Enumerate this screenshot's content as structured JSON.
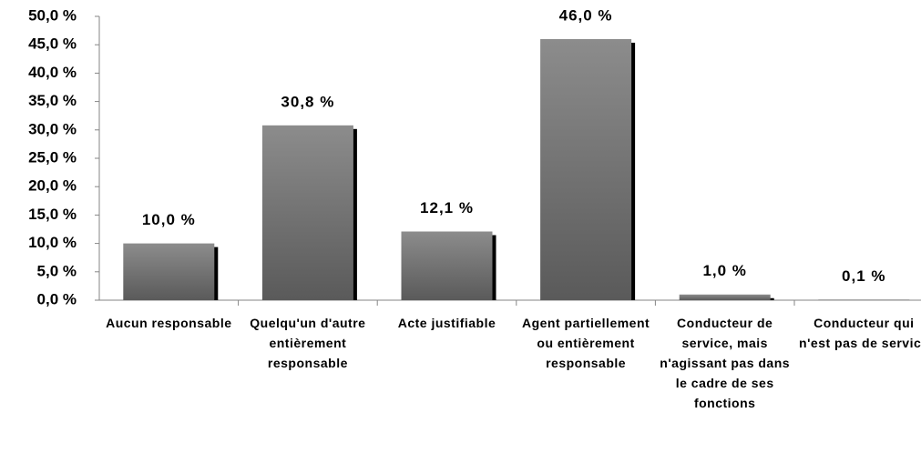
{
  "chart_data": {
    "type": "bar",
    "categories": [
      "Aucun responsable",
      "Quelqu'un d'autre entièrement responsable",
      "Acte justifiable",
      "Agent partiellement ou entièrement responsable",
      "Conducteur de service, mais n'agissant pas dans le cadre de ses fonctions",
      "Conducteur qui n'est pas de service"
    ],
    "values": [
      10.0,
      30.8,
      12.1,
      46.0,
      1.0,
      0.1
    ],
    "value_labels": [
      "10,0 %",
      "30,8 %",
      "12,1 %",
      "46,0 %",
      "1,0 %",
      "0,1 %"
    ],
    "color": "#7f7f7f",
    "ylim": [
      0,
      50
    ],
    "yticks": [
      {
        "value": 0,
        "label": "0,0 %"
      },
      {
        "value": 5,
        "label": "5,0 %"
      },
      {
        "value": 10,
        "label": "10,0 %"
      },
      {
        "value": 15,
        "label": "15,0 %"
      },
      {
        "value": 20,
        "label": "20,0 %"
      },
      {
        "value": 25,
        "label": "25,0 %"
      },
      {
        "value": 30,
        "label": "30,0 %"
      },
      {
        "value": 35,
        "label": "35,0 %"
      },
      {
        "value": 40,
        "label": "40,0 %"
      },
      {
        "value": 45,
        "label": "45,0 %"
      },
      {
        "value": 50,
        "label": "50,0 %"
      }
    ],
    "grid": false
  }
}
